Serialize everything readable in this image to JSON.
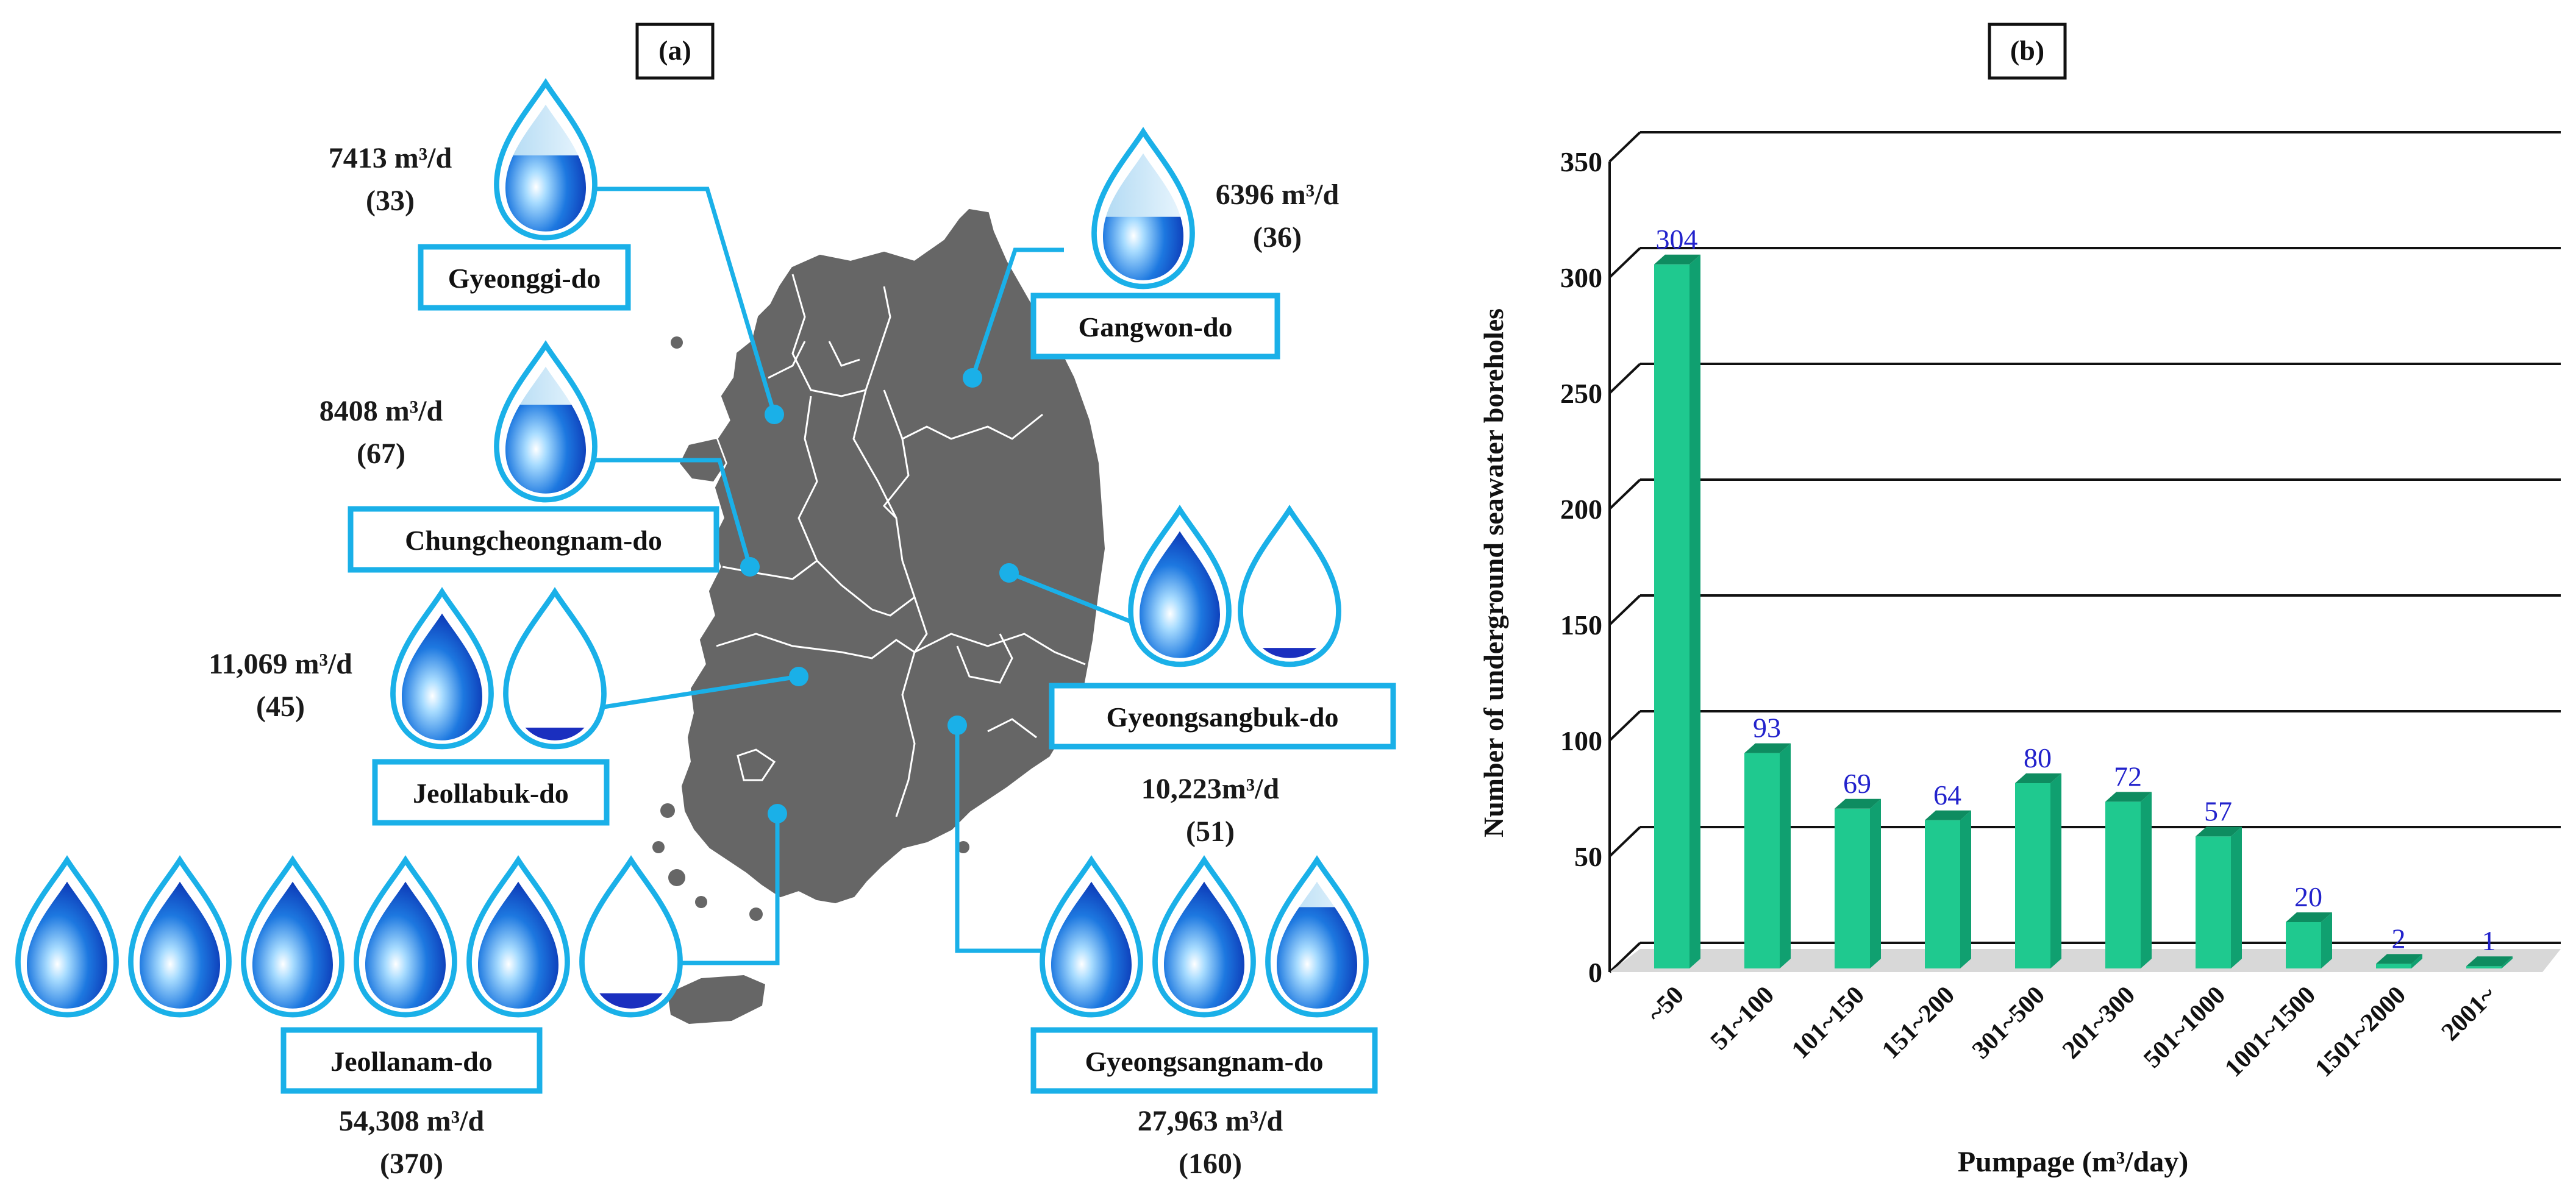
{
  "colors": {
    "accent": "#1ab0e8",
    "map": "#666666",
    "bar_front": "#1fc98f",
    "bar_side": "#10a070",
    "bar_top": "#0e8c60",
    "data_label": "#2222cc"
  },
  "panel_a": {
    "label": "(a)",
    "regions": [
      {
        "name": "Gyeonggi-do",
        "volume": "7413 m³/d",
        "count": "(33)",
        "drops_full": 0,
        "drop_last_fill": 0.6
      },
      {
        "name": "Gangwon-do",
        "volume": "6396 m³/d",
        "count": "(36)",
        "drops_full": 0,
        "drop_last_fill": 0.5
      },
      {
        "name": "Chungcheongnam-do",
        "volume": "8408 m³/d",
        "count": "(67)",
        "drops_full": 0,
        "drop_last_fill": 0.7
      },
      {
        "name": "Gyeongsangbuk-do",
        "volume": "10,223m³/d",
        "count": "(51)",
        "drops_full": 1,
        "drop_last_fill": 0.08
      },
      {
        "name": "Jeollabuk-do",
        "volume": "11,069 m³/d",
        "count": "(45)",
        "drops_full": 1,
        "drop_last_fill": 0.1
      },
      {
        "name": "Jeollanam-do",
        "volume": "54,308 m³/d",
        "count": "(370)",
        "drops_full": 5,
        "drop_last_fill": 0.12
      },
      {
        "name": "Gyeongsangnam-do",
        "volume": "27,963 m³/d",
        "count": "(160)",
        "drops_full": 2,
        "drop_last_fill": 0.8
      }
    ]
  },
  "panel_b": {
    "label": "(b)"
  },
  "chart_data": {
    "type": "bar",
    "title": "",
    "categories": [
      "~50",
      "51~100",
      "101~150",
      "151~200",
      "301~500",
      "201~300",
      "501~1000",
      "1001~1500",
      "1501~2000",
      "2001~"
    ],
    "values": [
      304,
      93,
      69,
      64,
      80,
      72,
      57,
      20,
      2,
      1
    ],
    "data_labels": [
      "304",
      "93",
      "69",
      "64",
      "80",
      "72",
      "57",
      "20",
      "2",
      "1"
    ],
    "xlabel": "Pumpage (m³/day)",
    "ylabel": "Number of underground seawater boreholes",
    "ylim": [
      0,
      350
    ],
    "yticks": [
      "0",
      "50",
      "100",
      "150",
      "200",
      "250",
      "300",
      "350"
    ],
    "grid": true
  }
}
